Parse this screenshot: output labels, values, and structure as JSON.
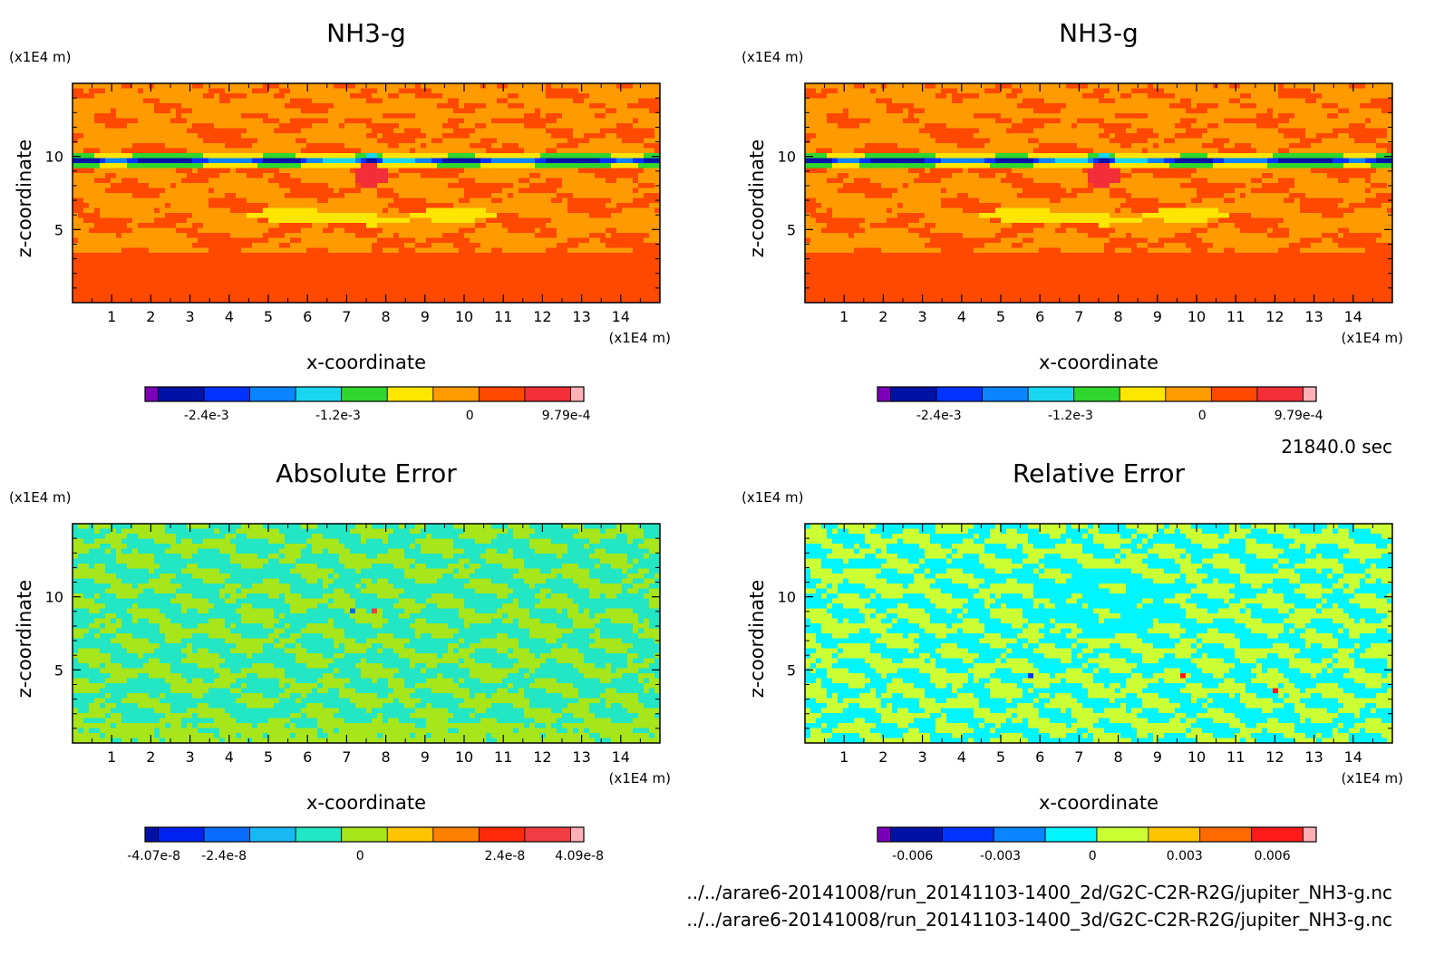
{
  "time_label": "21840.0 sec",
  "file_paths": [
    "../../arare6-20141008/run_20141103-1400_2d/G2C-C2R-R2G/jupiter_NH3-g.nc",
    "../../arare6-20141008/run_20141103-1400_3d/G2C-C2R-R2G/jupiter_NH3-g.nc"
  ],
  "chart_data": [
    {
      "type": "heatmap",
      "title": "NH3-g",
      "xlabel": "x-coordinate",
      "ylabel": "z-coordinate",
      "x_unit": "(x1E4 m)",
      "y_unit": "(x1E4 m)",
      "xlim": [
        0,
        15
      ],
      "ylim": [
        0,
        15
      ],
      "x_ticks": [
        1,
        2,
        3,
        4,
        5,
        6,
        7,
        8,
        9,
        10,
        11,
        12,
        13,
        14
      ],
      "y_ticks": [
        5,
        10
      ],
      "field": "nh3",
      "colorbar": {
        "colors": [
          "#7a00b8",
          "#0012a6",
          "#0033ff",
          "#0a84ff",
          "#18d6f0",
          "#2ed62e",
          "#ffe600",
          "#ff9a00",
          "#ff4800",
          "#f22e38",
          "#ffb0b4"
        ],
        "tick_labels": [
          "-2.4e-3",
          "-1.2e-3",
          "0",
          "9.79e-4"
        ]
      }
    },
    {
      "type": "heatmap",
      "title": "NH3-g",
      "xlabel": "x-coordinate",
      "ylabel": "z-coordinate",
      "x_unit": "(x1E4 m)",
      "y_unit": "(x1E4 m)",
      "xlim": [
        0,
        15
      ],
      "ylim": [
        0,
        15
      ],
      "x_ticks": [
        1,
        2,
        3,
        4,
        5,
        6,
        7,
        8,
        9,
        10,
        11,
        12,
        13,
        14
      ],
      "y_ticks": [
        5,
        10
      ],
      "field": "nh3",
      "colorbar": {
        "colors": [
          "#7a00b8",
          "#0012a6",
          "#0033ff",
          "#0a84ff",
          "#18d6f0",
          "#2ed62e",
          "#ffe600",
          "#ff9a00",
          "#ff4800",
          "#f22e38",
          "#ffb0b4"
        ],
        "tick_labels": [
          "-2.4e-3",
          "-1.2e-3",
          "0",
          "9.79e-4"
        ]
      }
    },
    {
      "type": "heatmap",
      "title": "Absolute Error",
      "xlabel": "x-coordinate",
      "ylabel": "z-coordinate",
      "x_unit": "(x1E4 m)",
      "y_unit": "(x1E4 m)",
      "xlim": [
        0,
        15
      ],
      "ylim": [
        0,
        15
      ],
      "x_ticks": [
        1,
        2,
        3,
        4,
        5,
        6,
        7,
        8,
        9,
        10,
        11,
        12,
        13,
        14
      ],
      "y_ticks": [
        5,
        10
      ],
      "field": "abs",
      "colorbar": {
        "colors": [
          "#0012a6",
          "#0022f0",
          "#0a6cff",
          "#18b8f5",
          "#22e6c4",
          "#a6e61a",
          "#ffc400",
          "#ff8000",
          "#ff2a0a",
          "#f23c44",
          "#ffb0b4"
        ],
        "tick_labels": [
          "-4.07e-8",
          "-2.4e-8",
          "0",
          "2.4e-8",
          "4.09e-8"
        ]
      }
    },
    {
      "type": "heatmap",
      "title": "Relative Error",
      "xlabel": "x-coordinate",
      "ylabel": "z-coordinate",
      "x_unit": "(x1E4 m)",
      "y_unit": "(x1E4 m)",
      "xlim": [
        0,
        15
      ],
      "ylim": [
        0,
        15
      ],
      "x_ticks": [
        1,
        2,
        3,
        4,
        5,
        6,
        7,
        8,
        9,
        10,
        11,
        12,
        13,
        14
      ],
      "y_ticks": [
        5,
        10
      ],
      "field": "rel",
      "colorbar": {
        "colors": [
          "#7a00b8",
          "#0012a6",
          "#0033ff",
          "#0a84ff",
          "#00f5ff",
          "#ccff33",
          "#ffc400",
          "#ff6a00",
          "#ff1a1a",
          "#ffb0b4"
        ],
        "tick_labels": [
          "-0.006",
          "-0.003",
          "0",
          "0.003",
          "0.006"
        ]
      }
    }
  ]
}
